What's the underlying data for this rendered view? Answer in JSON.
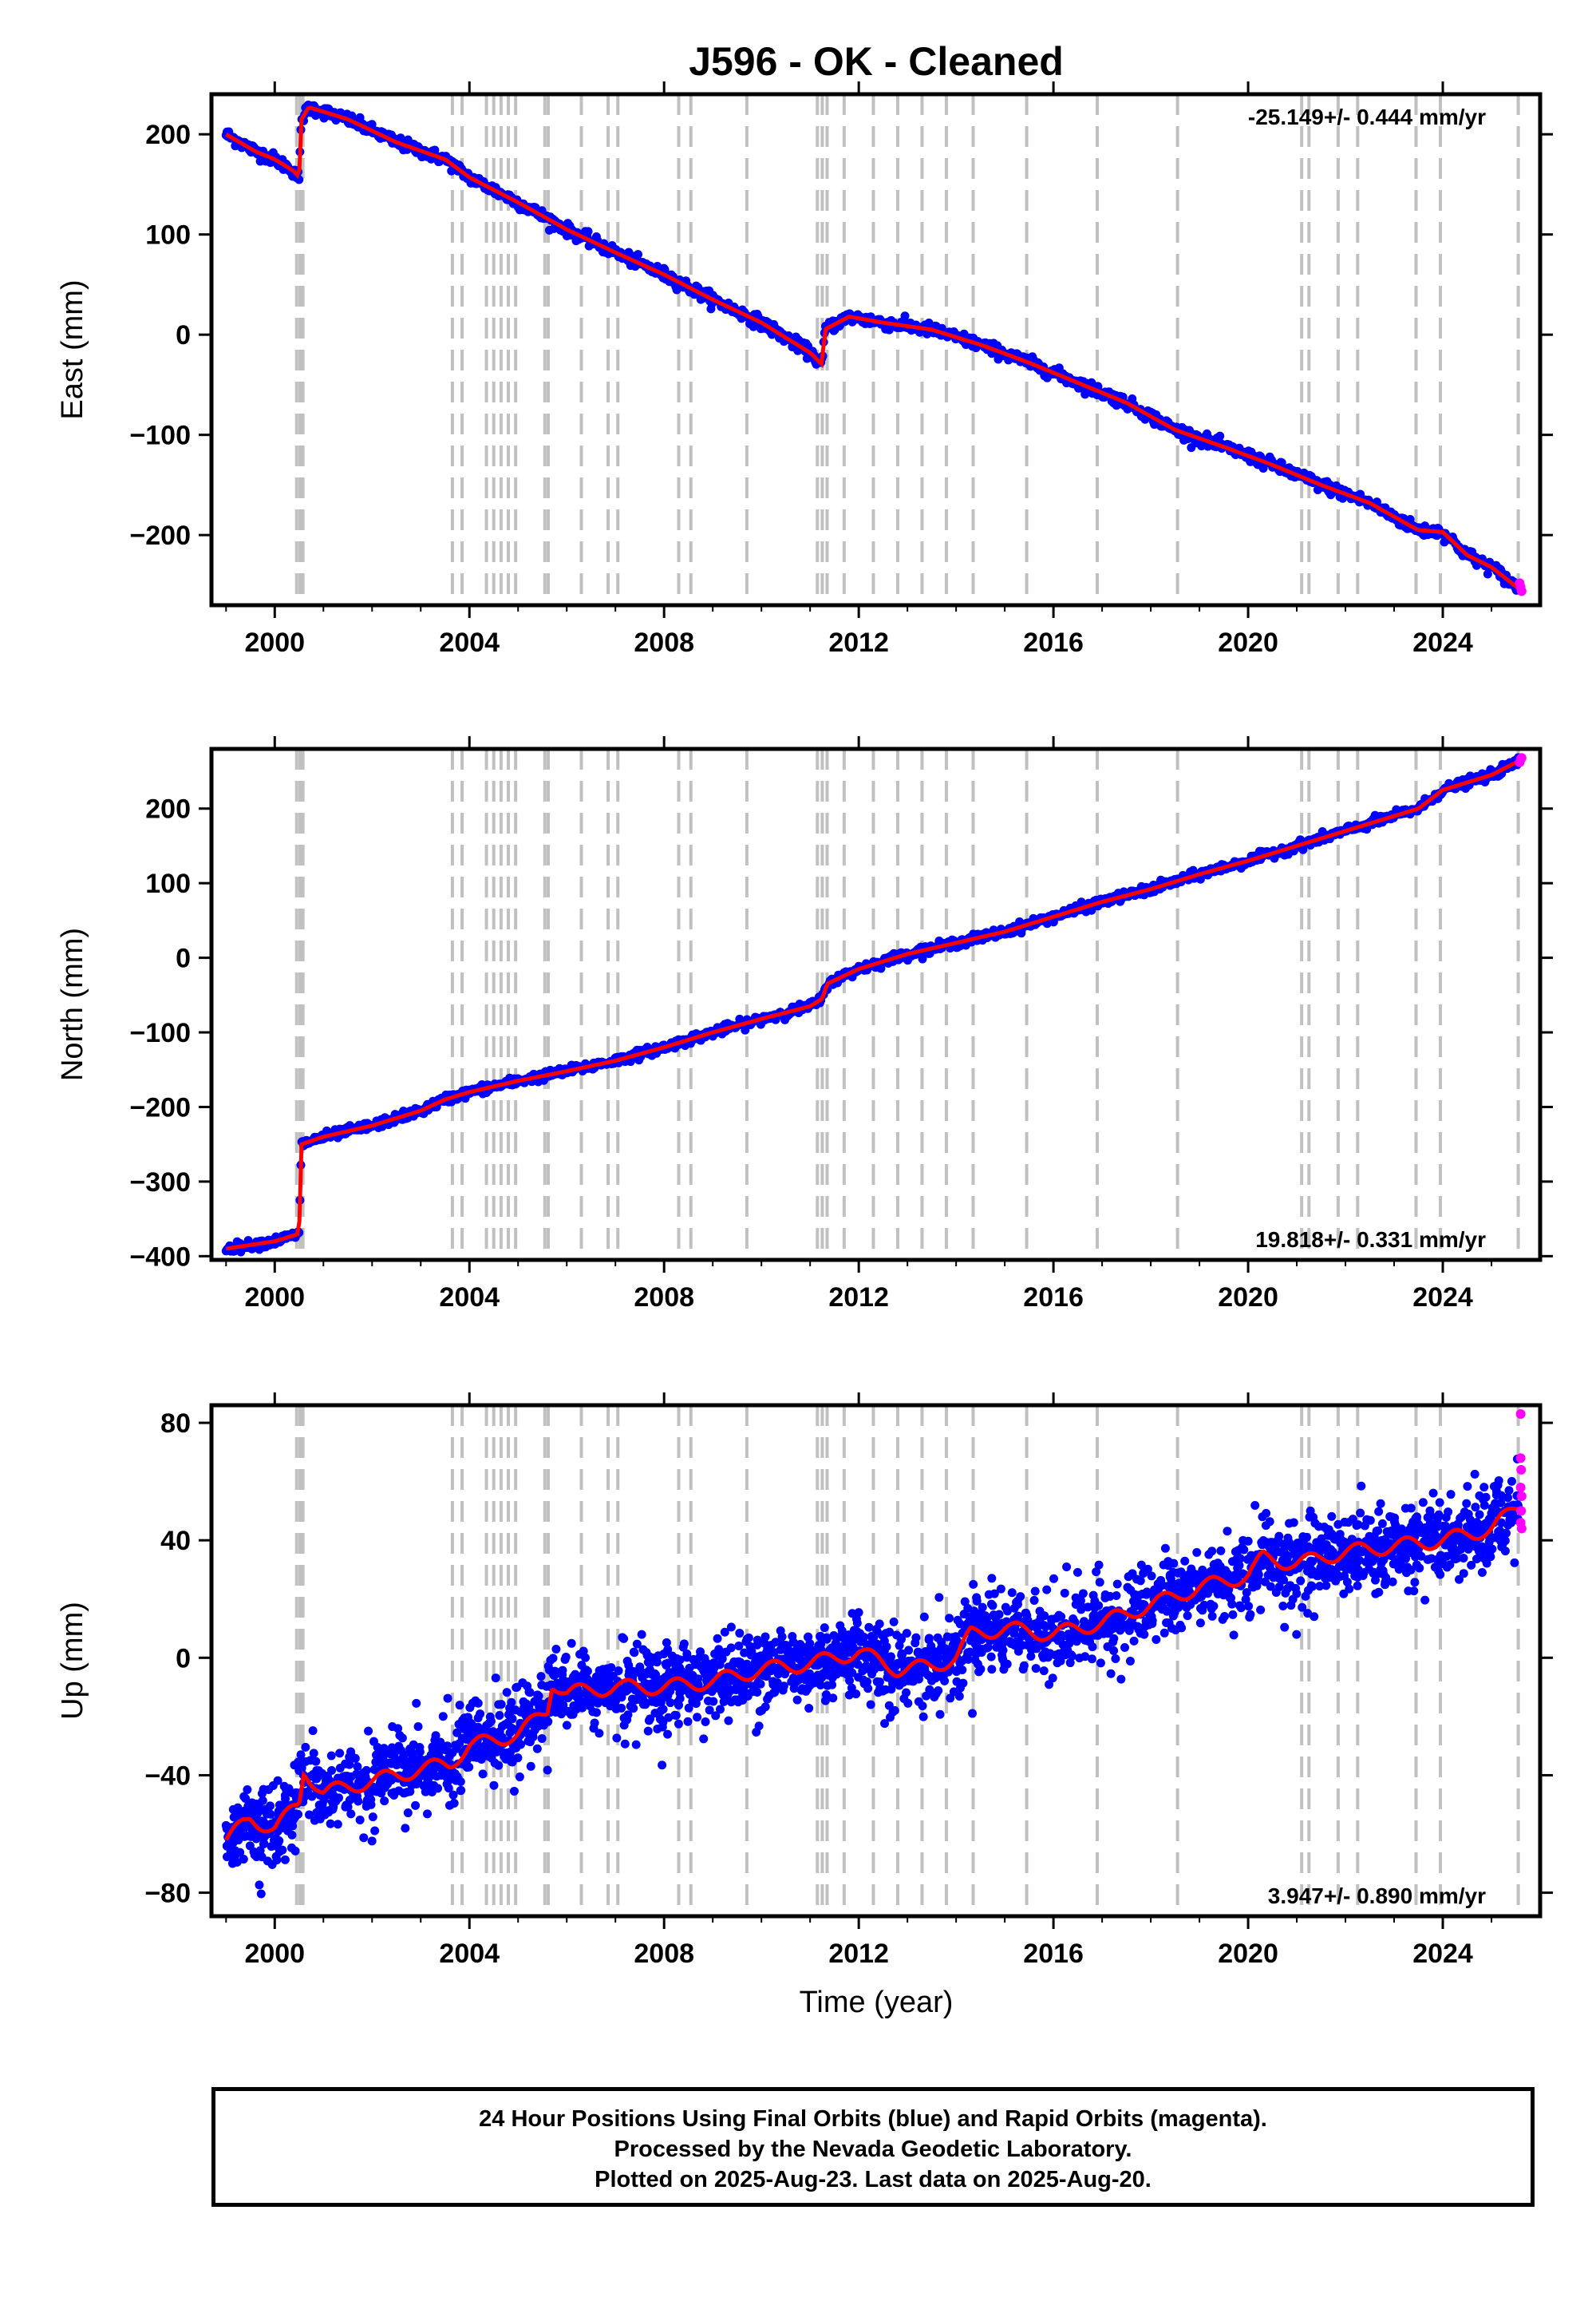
{
  "title": "J596  - OK - Cleaned",
  "xlabel": "Time (year)",
  "footer": {
    "line1": "24 Hour Positions Using Final Orbits (blue) and Rapid Orbits (magenta).",
    "line2": "Processed by the Nevada Geodetic Laboratory.",
    "line3": "Plotted on 2025-Aug-23. Last data on 2025-Aug-20."
  },
  "colors": {
    "final_orbits": "#0000ff",
    "rapid_orbits": "#ff00ff",
    "model": "#ff0000",
    "event_lines": "#c0c0c0",
    "frame": "#000000"
  },
  "chart_data": [
    {
      "type": "scatter",
      "panel": "east",
      "ylabel": "East (mm)",
      "rate_label": "-25.149+/- 0.444 mm/yr",
      "rate_position": "top-right",
      "xlim": [
        1998.7,
        2026.0
      ],
      "ylim": [
        -270,
        240
      ],
      "x_ticks": [
        "2000",
        "2004",
        "2008",
        "2012",
        "2016",
        "2020",
        "2024"
      ],
      "y_ticks": [
        -200,
        -100,
        0,
        100,
        200
      ],
      "noise_mm": 3,
      "model_points": [
        [
          1999.0,
          200
        ],
        [
          1999.6,
          183
        ],
        [
          2000.0,
          175
        ],
        [
          2000.4,
          163
        ],
        [
          2000.5,
          157
        ],
        [
          2000.55,
          215
        ],
        [
          2000.7,
          227
        ],
        [
          2001.5,
          215
        ],
        [
          2002.5,
          192
        ],
        [
          2003.5,
          175
        ],
        [
          2004.0,
          157
        ],
        [
          2005.0,
          132
        ],
        [
          2006.0,
          105
        ],
        [
          2007.0,
          82
        ],
        [
          2008.0,
          60
        ],
        [
          2009.0,
          35
        ],
        [
          2010.0,
          12
        ],
        [
          2011.0,
          -18
        ],
        [
          2011.25,
          -30
        ],
        [
          2011.3,
          5
        ],
        [
          2011.8,
          18
        ],
        [
          2012.5,
          12
        ],
        [
          2013.5,
          5
        ],
        [
          2014.5,
          -10
        ],
        [
          2015.5,
          -28
        ],
        [
          2016.5,
          -48
        ],
        [
          2017.5,
          -68
        ],
        [
          2018.5,
          -95
        ],
        [
          2019.5,
          -112
        ],
        [
          2020.5,
          -130
        ],
        [
          2021.5,
          -150
        ],
        [
          2022.5,
          -168
        ],
        [
          2023.3,
          -190
        ],
        [
          2023.5,
          -195
        ],
        [
          2024.0,
          -197
        ],
        [
          2024.5,
          -220
        ],
        [
          2025.0,
          -232
        ],
        [
          2025.6,
          -255
        ]
      ],
      "rapid_points": [
        [
          2025.58,
          -248
        ],
        [
          2025.6,
          -252
        ],
        [
          2025.62,
          -256
        ]
      ]
    },
    {
      "type": "scatter",
      "panel": "north",
      "ylabel": "North (mm)",
      "rate_label": "19.818+/- 0.331 mm/yr",
      "rate_position": "bottom-right",
      "xlim": [
        1998.7,
        2026.0
      ],
      "ylim": [
        -405,
        280
      ],
      "x_ticks": [
        "2000",
        "2004",
        "2008",
        "2012",
        "2016",
        "2020",
        "2024"
      ],
      "y_ticks": [
        -400,
        -300,
        -200,
        -100,
        0,
        100,
        200
      ],
      "noise_mm": 3,
      "model_points": [
        [
          1999.0,
          -390
        ],
        [
          2000.0,
          -380
        ],
        [
          2000.5,
          -370
        ],
        [
          2000.55,
          -250
        ],
        [
          2001.0,
          -240
        ],
        [
          2002.0,
          -225
        ],
        [
          2003.0,
          -205
        ],
        [
          2003.5,
          -190
        ],
        [
          2004.0,
          -180
        ],
        [
          2005.0,
          -165
        ],
        [
          2006.0,
          -152
        ],
        [
          2007.0,
          -138
        ],
        [
          2008.0,
          -120
        ],
        [
          2009.0,
          -100
        ],
        [
          2010.0,
          -82
        ],
        [
          2011.0,
          -65
        ],
        [
          2011.25,
          -55
        ],
        [
          2011.35,
          -35
        ],
        [
          2012.0,
          -15
        ],
        [
          2013.0,
          5
        ],
        [
          2014.0,
          20
        ],
        [
          2015.0,
          35
        ],
        [
          2016.0,
          55
        ],
        [
          2017.0,
          75
        ],
        [
          2018.0,
          92
        ],
        [
          2019.0,
          112
        ],
        [
          2020.0,
          130
        ],
        [
          2021.0,
          150
        ],
        [
          2022.0,
          170
        ],
        [
          2023.0,
          190
        ],
        [
          2023.5,
          200
        ],
        [
          2024.0,
          225
        ],
        [
          2025.0,
          245
        ],
        [
          2025.6,
          265
        ]
      ],
      "rapid_points": [
        [
          2025.58,
          262
        ],
        [
          2025.6,
          266
        ],
        [
          2025.62,
          268
        ]
      ]
    },
    {
      "type": "scatter",
      "panel": "up",
      "ylabel": "Up (mm)",
      "rate_label": "3.947+/- 0.890 mm/yr",
      "rate_position": "bottom-right",
      "xlim": [
        1998.7,
        2026.0
      ],
      "ylim": [
        -88,
        86
      ],
      "x_ticks": [
        "2000",
        "2004",
        "2008",
        "2012",
        "2016",
        "2020",
        "2024"
      ],
      "y_ticks": [
        -80,
        -40,
        0,
        40,
        80
      ],
      "noise_mm": 5,
      "model_points": [
        [
          1999.0,
          -62
        ],
        [
          1999.5,
          -55
        ],
        [
          2000.0,
          -58
        ],
        [
          2000.5,
          -50
        ],
        [
          2000.6,
          -38
        ],
        [
          2001.0,
          -46
        ],
        [
          2002.0,
          -42
        ],
        [
          2003.0,
          -38
        ],
        [
          2003.6,
          -36
        ],
        [
          2004.0,
          -30
        ],
        [
          2005.0,
          -26
        ],
        [
          2005.6,
          -18
        ],
        [
          2005.7,
          -8
        ],
        [
          2006.0,
          -12
        ],
        [
          2007.0,
          -10
        ],
        [
          2008.0,
          -10
        ],
        [
          2009.0,
          -8
        ],
        [
          2010.0,
          -4
        ],
        [
          2011.0,
          -2
        ],
        [
          2012.0,
          2
        ],
        [
          2012.8,
          -4
        ],
        [
          2013.5,
          -3
        ],
        [
          2014.0,
          0
        ],
        [
          2014.3,
          8
        ],
        [
          2015.0,
          10
        ],
        [
          2016.0,
          8
        ],
        [
          2017.0,
          12
        ],
        [
          2018.0,
          18
        ],
        [
          2019.0,
          24
        ],
        [
          2020.0,
          28
        ],
        [
          2020.3,
          34
        ],
        [
          2021.0,
          32
        ],
        [
          2022.0,
          36
        ],
        [
          2023.0,
          38
        ],
        [
          2024.0,
          40
        ],
        [
          2025.0,
          44
        ],
        [
          2025.6,
          52
        ]
      ],
      "rapid_points": [
        [
          2025.6,
          83
        ],
        [
          2025.6,
          68
        ],
        [
          2025.61,
          64
        ],
        [
          2025.6,
          58
        ],
        [
          2025.62,
          55
        ],
        [
          2025.61,
          50
        ],
        [
          2025.6,
          46
        ],
        [
          2025.62,
          44
        ]
      ]
    }
  ],
  "event_lines": [
    2000.45,
    2000.52,
    2000.58,
    2003.65,
    2003.85,
    2004.35,
    2004.5,
    2004.65,
    2004.8,
    2004.95,
    2005.55,
    2005.62,
    2006.3,
    2006.85,
    2007.05,
    2008.3,
    2008.55,
    2009.7,
    2011.15,
    2011.25,
    2011.35,
    2011.7,
    2012.3,
    2012.8,
    2013.3,
    2013.8,
    2014.35,
    2015.45,
    2016.9,
    2018.55,
    2021.1,
    2021.25,
    2021.85,
    2022.25,
    2023.45,
    2023.95,
    2025.55
  ]
}
